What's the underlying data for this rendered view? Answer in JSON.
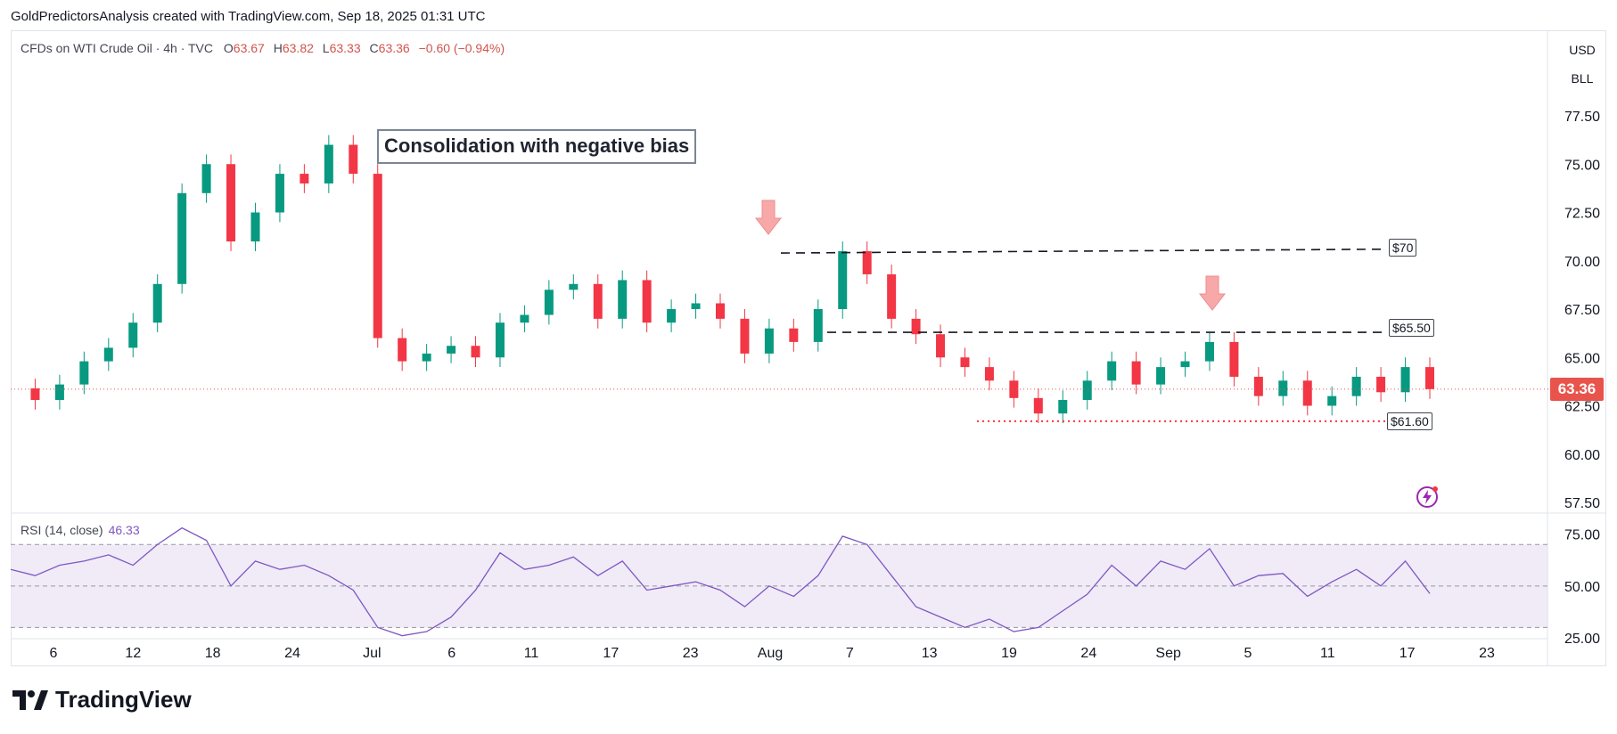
{
  "header": {
    "attribution": "GoldPredictorsAnalysis created with TradingView.com, Sep 18, 2025 01:31 UTC"
  },
  "legend": {
    "symbol": "CFDs on WTI Crude Oil · 4h · TVC",
    "open_key": "O",
    "open": "63.67",
    "high_key": "H",
    "high": "63.82",
    "low_key": "L",
    "low": "63.33",
    "close_key": "C",
    "close": "63.36",
    "change": "−0.60 (−0.94%)"
  },
  "currency": {
    "unit": "USD",
    "measure": "BLL"
  },
  "annotation": {
    "text": "Consolidation with negative bias"
  },
  "levels": {
    "l70": "$70",
    "l6550": "$65.50",
    "l6160": "$61.60"
  },
  "last_price": "63.36",
  "rsi": {
    "label": "RSI (14, close)",
    "value": "46.33"
  },
  "brand": {
    "name": "TradingView"
  },
  "colors": {
    "up": "#089981",
    "down": "#f23645",
    "rsi": "#7e57c2",
    "last": "#e8544b"
  },
  "chart_data": [
    {
      "type": "line",
      "title": "CFDs on WTI Crude Oil · 4h · TVC",
      "y_ticks": [
        "77.50",
        "75.00",
        "72.50",
        "70.00",
        "67.50",
        "65.00",
        "62.50",
        "60.00",
        "57.50"
      ],
      "x_ticks": [
        "6",
        "12",
        "18",
        "24",
        "Jul",
        "6",
        "11",
        "17",
        "23",
        "Aug",
        "7",
        "13",
        "19",
        "24",
        "Sep",
        "5",
        "11",
        "17",
        "23"
      ],
      "ylim": [
        57.5,
        77.5
      ],
      "series": [
        {
          "values": [
            63.4,
            62.8,
            63.6,
            64.8,
            65.5,
            66.8,
            68.8,
            73.5,
            75.0,
            71.0,
            72.5,
            74.5,
            74.0,
            76.0,
            74.5,
            66.0,
            64.8,
            65.2,
            65.6,
            65.0,
            66.8,
            67.2,
            68.5,
            68.8,
            67.0,
            69.0,
            66.8,
            67.5,
            67.8,
            67.0,
            65.2,
            66.5,
            65.8,
            67.5,
            70.5,
            69.3,
            67.0,
            66.2,
            65.0,
            64.5,
            63.8,
            62.9,
            62.1,
            62.8,
            63.8,
            64.8,
            63.6,
            64.5,
            64.8,
            65.8,
            64.0,
            63.0,
            63.8,
            62.5,
            63.0,
            64.0,
            63.2,
            64.5,
            63.36
          ]
        }
      ],
      "annotations": [
        "$70",
        "$65.50",
        "$61.60",
        "Consolidation with negative bias"
      ]
    },
    {
      "type": "line",
      "title": "RSI (14, close)",
      "y_ticks": [
        "75.00",
        "50.00",
        "25.00"
      ],
      "ylim": [
        25,
        80
      ],
      "series": [
        {
          "values": [
            58,
            55,
            60,
            62,
            65,
            60,
            70,
            78,
            72,
            50,
            62,
            58,
            60,
            55,
            48,
            30,
            26,
            28,
            35,
            48,
            66,
            58,
            60,
            64,
            55,
            62,
            48,
            50,
            52,
            48,
            40,
            50,
            45,
            55,
            74,
            70,
            55,
            40,
            35,
            30,
            34,
            28,
            30,
            38,
            46,
            60,
            50,
            62,
            58,
            68,
            50,
            55,
            56,
            45,
            52,
            58,
            50,
            62,
            46.33
          ]
        }
      ],
      "annotations": [
        "46.33"
      ]
    }
  ]
}
